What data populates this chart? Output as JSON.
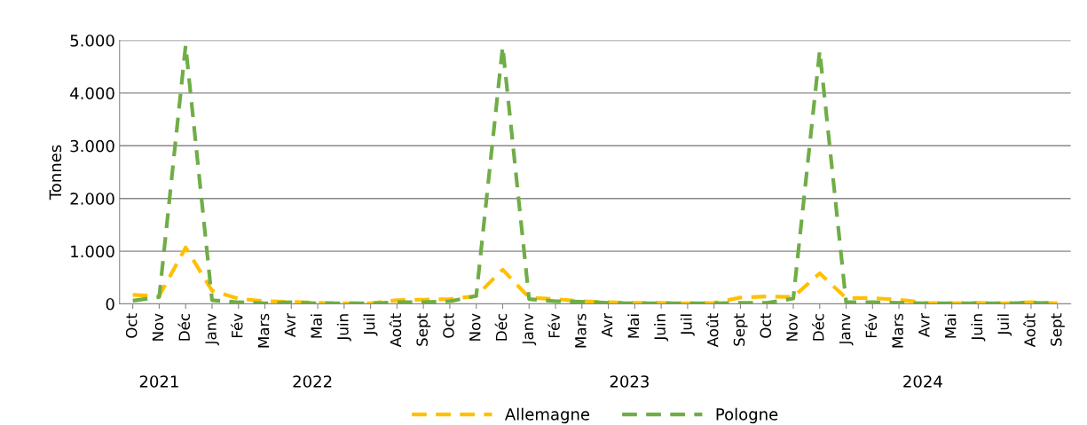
{
  "chart_data": {
    "type": "line",
    "ylabel": "Tonnes",
    "categories": [
      "Oct",
      "Nov",
      "Déc",
      "Janv",
      "Fév",
      "Mars",
      "Avr",
      "Mai",
      "Juin",
      "Juil",
      "Août",
      "Sept",
      "Oct",
      "Nov",
      "Déc",
      "Janv",
      "Fév",
      "Mars",
      "Avr",
      "Mai",
      "Juin",
      "Juil",
      "Août",
      "Sept",
      "Oct",
      "Nov",
      "Déc",
      "Janv",
      "Fév",
      "Mars",
      "Avr",
      "Mai",
      "Juin",
      "Juil",
      "Août",
      "Sept"
    ],
    "series": [
      {
        "name": "Allemagne",
        "color": "#ffc000",
        "values": [
          170,
          150,
          1070,
          250,
          100,
          50,
          40,
          20,
          10,
          10,
          70,
          80,
          90,
          150,
          650,
          120,
          90,
          50,
          30,
          20,
          20,
          10,
          20,
          120,
          140,
          130,
          580,
          110,
          110,
          80,
          20,
          10,
          20,
          10,
          30,
          10
        ]
      },
      {
        "name": "Pologne",
        "color": "#70ad47",
        "values": [
          60,
          130,
          4900,
          70,
          30,
          10,
          30,
          10,
          10,
          10,
          30,
          30,
          50,
          150,
          4880,
          90,
          50,
          40,
          20,
          10,
          10,
          10,
          10,
          20,
          20,
          100,
          4800,
          30,
          30,
          20,
          10,
          10,
          10,
          10,
          20,
          10
        ]
      }
    ],
    "ylim": [
      0,
      5000
    ],
    "yticks": [
      {
        "value": 0,
        "label": "0"
      },
      {
        "value": 1000,
        "label": "1.000"
      },
      {
        "value": 2000,
        "label": "2.000"
      },
      {
        "value": 3000,
        "label": "3.000"
      },
      {
        "value": 4000,
        "label": "4.000"
      },
      {
        "value": 5000,
        "label": "5.000"
      }
    ],
    "annotations": [
      "2021",
      "2022",
      "2023",
      "2024"
    ],
    "grid": "y",
    "legend": "bottom",
    "line_style": "dashed",
    "marker": "none"
  }
}
